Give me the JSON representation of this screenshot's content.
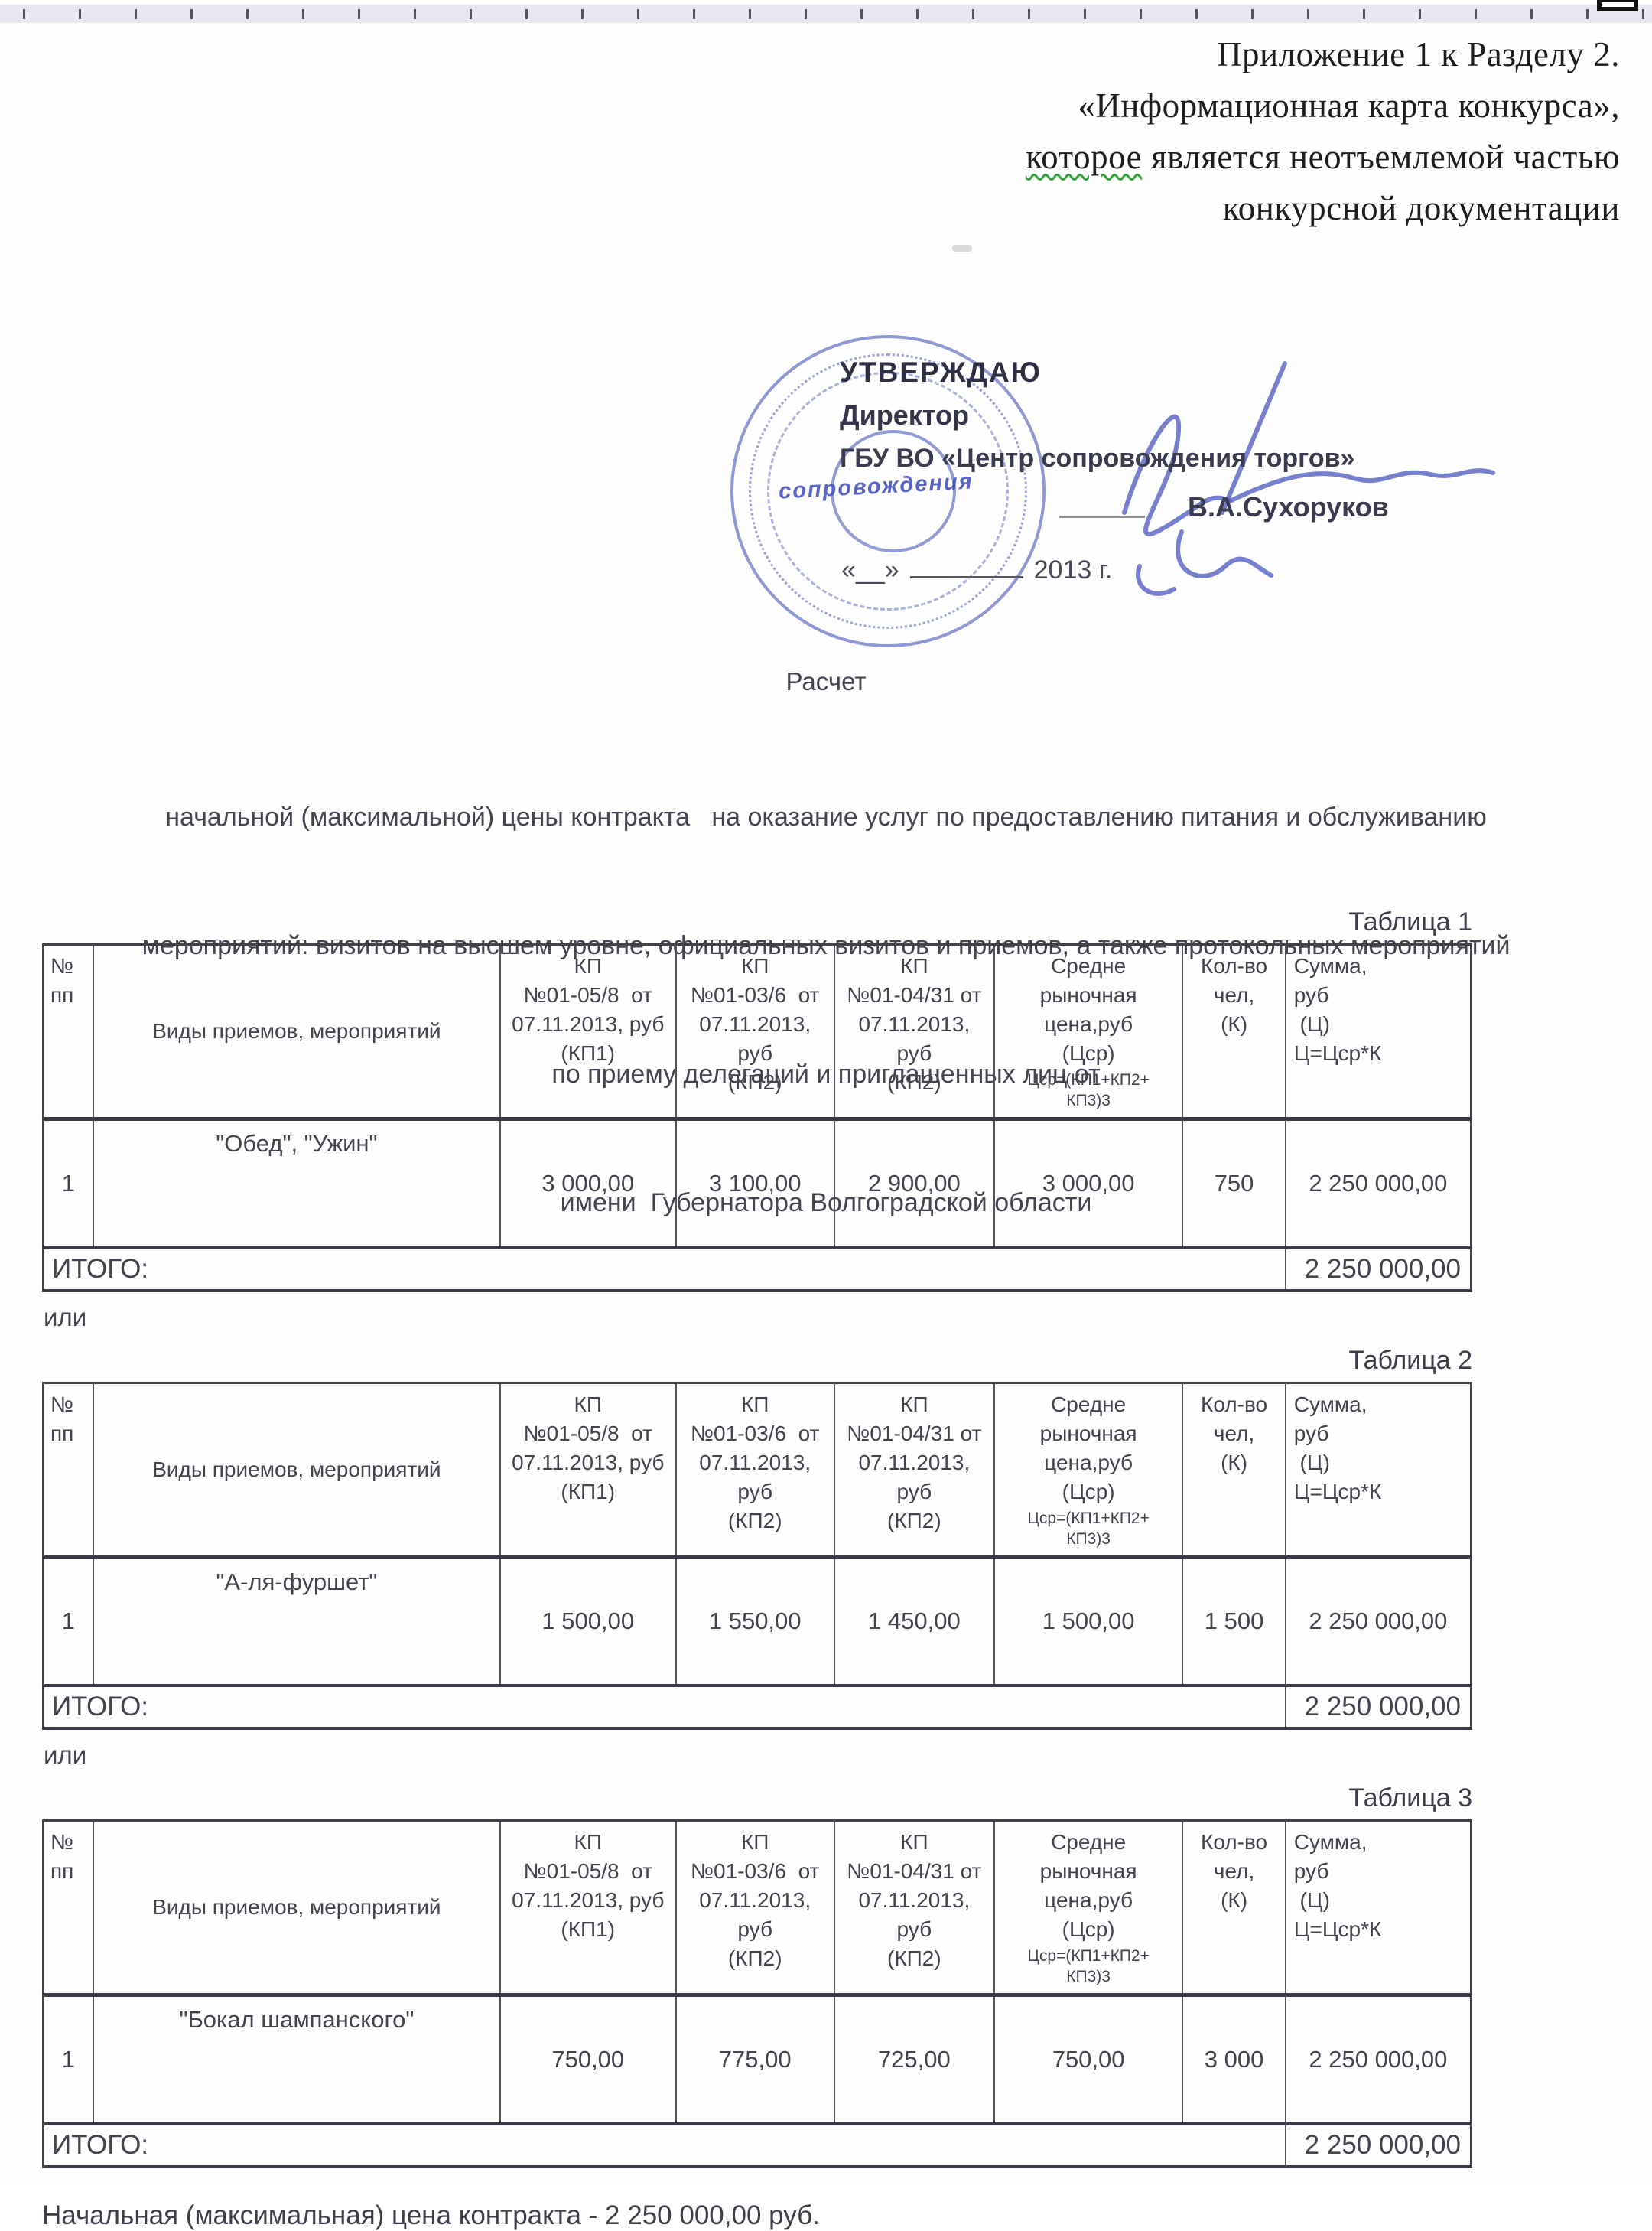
{
  "header_right": {
    "lines": [
      "Приложение 1 к Разделу 2.",
      "«Информационная карта конкурса»,",
      "которое является неотъемлемой частью",
      "конкурсной документации"
    ],
    "line3_word": "которое",
    "line3_rest": " является неотъемлемой частью"
  },
  "approval": {
    "approve_label": "УТВЕРЖДАЮ",
    "role": "Директор",
    "org": "ГБУ ВО «Центр сопровождения торгов»",
    "name": "В.А.Сухоруков",
    "date_quotes": "«__»",
    "date_year": "2013 г.",
    "stamp_word": "сопровождения",
    "stamp_color": "#4858b9"
  },
  "title_block": {
    "title": "Расчет",
    "lines": [
      "начальной (максимальной) цены контракта   на оказание услуг по предоставлению питания и обслуживанию",
      "мероприятий: визитов на высшем уровне, официальных визитов и приемов, а также протокольных мероприятий",
      "по приему делегаций и приглашенных лиц от",
      "имени  Губернатора Волгоградской области"
    ]
  },
  "or_separator": "или",
  "tables": [
    {
      "label": "Таблица 1",
      "columns": [
        {
          "text": "№\nпп"
        },
        {
          "text": "Виды приемов, мероприятий"
        },
        {
          "text": "КП\n№01-05/8  от\n07.11.2013, руб\n(КП1)"
        },
        {
          "text": "КП\n№01-03/6  от\n07.11.2013,\nруб\n(КП2)"
        },
        {
          "text": "КП\n№01-04/31 от\n07.11.2013, руб\n(КП2)"
        },
        {
          "text": "Средне\nрыночная\nцена,руб\n(Цср)",
          "sub": "Цср=(КП1+КП2+\nКП3)3"
        },
        {
          "text": "Кол-во\nчел,\n(К)"
        },
        {
          "text": "Сумма,\nруб\n (Ц)\nЦ=Цср*К"
        }
      ],
      "rows": [
        [
          "1",
          "\"Обед\", \"Ужин\"",
          "3 000,00",
          "3 100,00",
          "2 900,00",
          "3 000,00",
          "750",
          "2 250 000,00"
        ]
      ],
      "total_label": "ИТОГО:",
      "total_value": "2 250 000,00"
    },
    {
      "label": "Таблица 2",
      "columns": [
        {
          "text": "№\nпп"
        },
        {
          "text": "Виды приемов, мероприятий"
        },
        {
          "text": "КП\n№01-05/8  от\n07.11.2013, руб\n(КП1)"
        },
        {
          "text": "КП\n№01-03/6  от\n07.11.2013,\nруб\n(КП2)"
        },
        {
          "text": "КП\n№01-04/31 от\n07.11.2013, руб\n(КП2)"
        },
        {
          "text": "Средне\nрыночная\nцена,руб\n(Цср)",
          "sub": "Цср=(КП1+КП2+\nКП3)3"
        },
        {
          "text": "Кол-во\nчел,\n(К)"
        },
        {
          "text": "Сумма,\nруб\n (Ц)\nЦ=Цср*К"
        }
      ],
      "rows": [
        [
          "1",
          "\"А-ля-фуршет\"",
          "1 500,00",
          "1 550,00",
          "1 450,00",
          "1 500,00",
          "1 500",
          "2 250 000,00"
        ]
      ],
      "total_label": "ИТОГО:",
      "total_value": "2 250 000,00"
    },
    {
      "label": "Таблица 3",
      "columns": [
        {
          "text": "№\nпп"
        },
        {
          "text": "Виды приемов, мероприятий"
        },
        {
          "text": "КП\n№01-05/8  от\n07.11.2013, руб\n(КП1)"
        },
        {
          "text": "КП\n№01-03/6  от\n07.11.2013,\nруб\n(КП2)"
        },
        {
          "text": "КП\n№01-04/31 от\n07.11.2013, руб\n(КП2)"
        },
        {
          "text": "Средне\nрыночная\nцена,руб\n(Цср)",
          "sub": "Цср=(КП1+КП2+\nКП3)3"
        },
        {
          "text": "Кол-во\nчел,\n(К)"
        },
        {
          "text": "Сумма,\nруб\n (Ц)\nЦ=Цср*К"
        }
      ],
      "rows": [
        [
          "1",
          "\"Бокал шампанского\"",
          "750,00",
          "775,00",
          "725,00",
          "750,00",
          "3 000",
          "2 250 000,00"
        ]
      ],
      "total_label": "ИТОГО:",
      "total_value": "2 250 000,00"
    }
  ],
  "footer": "Начальная (максимальная) цена контракта - 2 250 000,00  руб."
}
